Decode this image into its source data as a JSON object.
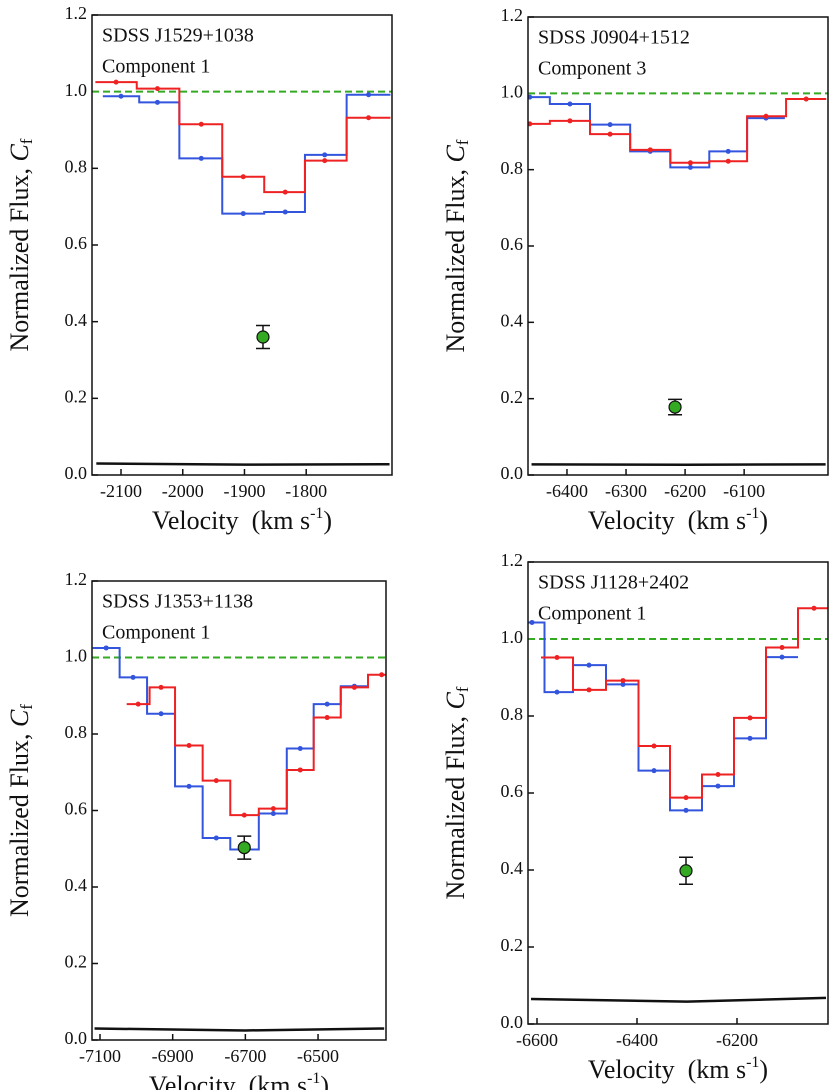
{
  "chart_data": [
    {
      "type": "step",
      "title": [
        "SDSS J1529+1038",
        "Component 1"
      ],
      "ylabel": [
        "Normalized Flux, ",
        "C",
        "f"
      ],
      "xlabel": [
        "Velocity  (km s",
        "-1",
        ")"
      ],
      "xlim": [
        -2147,
        -1661
      ],
      "ylim": [
        0,
        1.2
      ],
      "xticks": [
        -2100,
        -2000,
        -1900,
        -1800
      ],
      "yticks": [
        {
          "value": 0,
          "label": "0.0"
        },
        0.2,
        0.4,
        0.6,
        0.8,
        {
          "value": 1,
          "label": "1.0"
        },
        {
          "value": 1.2,
          "label": "1.2"
        }
      ],
      "hline": 1,
      "hline_color": "#33aa22",
      "series": [
        {
          "color": "#3355dd",
          "style": "step",
          "x": [
            -2100,
            -2041,
            -1970,
            -1902,
            -1834,
            -1770,
            -1699
          ],
          "values": [
            0.988,
            0.972,
            0.826,
            0.682,
            0.686,
            0.835,
            0.992
          ]
        },
        {
          "color": "#ee2222",
          "style": "step",
          "x": [
            -2108,
            -2041,
            -1970,
            -1902,
            -1834,
            -1770,
            -1699
          ],
          "values": [
            1.025,
            1.008,
            0.915,
            0.778,
            0.738,
            0.82,
            0.932
          ]
        },
        {
          "color": "#111111",
          "style": "line",
          "x": [
            -2140,
            -1900,
            -1665
          ],
          "values": [
            0.03,
            0.027,
            0.028
          ]
        }
      ],
      "points": {
        "color": "#33aa22",
        "x": [
          -1870
        ],
        "values": [
          0.36
        ],
        "errors": [
          0.03
        ]
      }
    },
    {
      "type": "step",
      "title": [
        "SDSS J0904+1512",
        "Component 3"
      ],
      "ylabel": [
        "Normalized Flux, ",
        "C",
        "f"
      ],
      "xlabel": [
        "Velocity  (km s",
        "-1",
        ")"
      ],
      "xlim": [
        -6466,
        -5958
      ],
      "ylim": [
        0,
        1.2
      ],
      "xticks": [
        -6400,
        -6300,
        -6200,
        -6100
      ],
      "yticks": [
        {
          "value": 0,
          "label": "0.0"
        },
        0.2,
        0.4,
        0.6,
        0.8,
        {
          "value": 1,
          "label": "1.0"
        },
        {
          "value": 1.2,
          "label": "1.2"
        }
      ],
      "hline": 1,
      "hline_color": "#33aa22",
      "series": [
        {
          "color": "#3355dd",
          "style": "step",
          "x": [
            -6463,
            -6395,
            -6327,
            -6259,
            -6191,
            -6127,
            -6063
          ],
          "values": [
            0.99,
            0.972,
            0.918,
            0.848,
            0.806,
            0.848,
            0.935
          ]
        },
        {
          "color": "#ee2222",
          "style": "step",
          "x": [
            -6463,
            -6395,
            -6327,
            -6259,
            -6191,
            -6127,
            -6063,
            -5995
          ],
          "values": [
            0.92,
            0.928,
            0.893,
            0.852,
            0.818,
            0.822,
            0.94,
            0.985
          ]
        },
        {
          "color": "#111111",
          "style": "line",
          "x": [
            -6460,
            -6200,
            -5962
          ],
          "values": [
            0.028,
            0.027,
            0.028
          ]
        }
      ],
      "points": {
        "color": "#33aa22",
        "x": [
          -6217
        ],
        "values": [
          0.178
        ],
        "errors": [
          0.02
        ]
      }
    },
    {
      "type": "step",
      "title": [
        "SDSS J1353+1138",
        "Component 1"
      ],
      "ylabel": [
        "Normalized Flux, ",
        "C",
        "f"
      ],
      "xlabel": [
        "Velocity  (km s",
        "-1",
        ")"
      ],
      "xlim": [
        -7122,
        -6313
      ],
      "ylim": [
        0,
        1.2
      ],
      "xticks": [
        -7100,
        -6900,
        -6700,
        -6500
      ],
      "yticks": [
        {
          "value": 0,
          "label": "0.0"
        },
        0.2,
        0.4,
        0.6,
        0.8,
        {
          "value": 1,
          "label": "1.0"
        },
        {
          "value": 1.2,
          "label": "1.2"
        }
      ],
      "hline": 1,
      "hline_color": "#33aa22",
      "series": [
        {
          "color": "#3355dd",
          "style": "step",
          "x": [
            -7083,
            -7009,
            -6932,
            -6855,
            -6780,
            -6703,
            -6623,
            -6549,
            -6475,
            -6400
          ],
          "values": [
            1.025,
            0.948,
            0.853,
            0.663,
            0.528,
            0.498,
            0.592,
            0.762,
            0.878,
            0.925
          ]
        },
        {
          "color": "#ee2222",
          "style": "step",
          "x": [
            -6995,
            -6932,
            -6855,
            -6780,
            -6703,
            -6623,
            -6549,
            -6475,
            -6400,
            -6325
          ],
          "values": [
            0.878,
            0.922,
            0.77,
            0.678,
            0.588,
            0.605,
            0.706,
            0.843,
            0.922,
            0.955
          ]
        },
        {
          "color": "#111111",
          "style": "line",
          "x": [
            -7115,
            -6700,
            -6318
          ],
          "values": [
            0.03,
            0.025,
            0.03
          ]
        }
      ],
      "points": {
        "color": "#33aa22",
        "x": [
          -6703
        ],
        "values": [
          0.503
        ],
        "errors": [
          0.03
        ]
      }
    },
    {
      "type": "step",
      "title": [
        "SDSS J1128+2402",
        "Component 1"
      ],
      "ylabel": [
        "Normalized Flux, ",
        "C",
        "f"
      ],
      "xlabel": [
        "Velocity  (km s",
        "-1",
        ")"
      ],
      "xlim": [
        -6618,
        -6018
      ],
      "ylim": [
        0,
        1.2
      ],
      "xticks": [
        -6600,
        -6400,
        -6200
      ],
      "yticks": [
        {
          "value": 0,
          "label": "0.0"
        },
        0.2,
        0.4,
        0.6,
        0.8,
        {
          "value": 1,
          "label": "1.0"
        },
        {
          "value": 1.2,
          "label": "1.2"
        }
      ],
      "hline": 1,
      "hline_color": "#33aa22",
      "series": [
        {
          "color": "#3355dd",
          "style": "step",
          "x": [
            -6610,
            -6560,
            -6496,
            -6428,
            -6366,
            -6302,
            -6238,
            -6174,
            -6110
          ],
          "values": [
            1.043,
            0.862,
            0.932,
            0.882,
            0.658,
            0.555,
            0.618,
            0.742,
            0.953
          ]
        },
        {
          "color": "#ee2222",
          "style": "step",
          "x": [
            -6560,
            -6496,
            -6428,
            -6366,
            -6302,
            -6238,
            -6174,
            -6110,
            -6046
          ],
          "values": [
            0.952,
            0.868,
            0.892,
            0.722,
            0.588,
            0.648,
            0.795,
            0.978,
            1.08
          ]
        },
        {
          "color": "#111111",
          "style": "line",
          "x": [
            -6612,
            -6300,
            -6022
          ],
          "values": [
            0.065,
            0.058,
            0.068
          ]
        }
      ],
      "points": {
        "color": "#33aa22",
        "x": [
          -6302
        ],
        "values": [
          0.398
        ],
        "errors": [
          0.035
        ]
      }
    }
  ]
}
